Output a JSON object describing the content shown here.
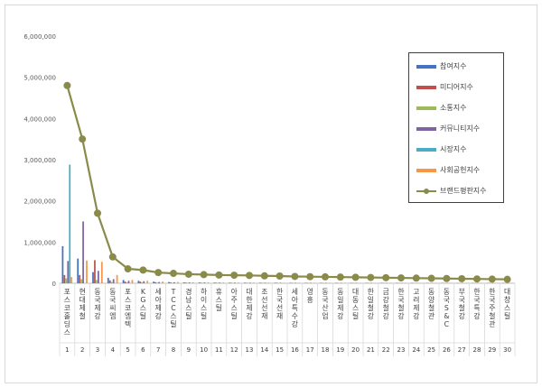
{
  "chart_data": {
    "type": "bar",
    "ylim": [
      0,
      6000000
    ],
    "y_ticks": [
      "0",
      "1,000,000",
      "2,000,000",
      "3,000,000",
      "4,000,000",
      "5,000,000",
      "6,000,000"
    ],
    "y_tick_values": [
      0,
      1000000,
      2000000,
      3000000,
      4000000,
      5000000,
      6000000
    ],
    "categories": [
      "포스코홀딩스",
      "현대제철",
      "동국제강",
      "동국씨엠",
      "포스코엠텍",
      "KG스틸",
      "세아제강",
      "TCC스틸",
      "경남스틸",
      "하이스틸",
      "휴스틸",
      "아주스틸",
      "대한제강",
      "조선선재",
      "한국선재",
      "세아특수강",
      "영흥",
      "동국산업",
      "동일제강",
      "대동스틸",
      "한일철강",
      "금강철강",
      "한국철강",
      "고려제강",
      "동양철관",
      "동국S&C",
      "부국철강",
      "한국특강",
      "한국주철관",
      "대창스틸"
    ],
    "ranks": [
      "1",
      "2",
      "3",
      "4",
      "5",
      "6",
      "7",
      "8",
      "9",
      "10",
      "11",
      "12",
      "13",
      "14",
      "15",
      "16",
      "17",
      "18",
      "19",
      "20",
      "21",
      "22",
      "23",
      "24",
      "25",
      "26",
      "27",
      "28",
      "29",
      "30"
    ],
    "series": [
      {
        "name": "참여지수",
        "color": "#4472c4",
        "values": [
          900000,
          600000,
          270000,
          130000,
          80000,
          60000,
          40000,
          30000,
          20000,
          18000,
          16000,
          15000,
          14000,
          13000,
          12000,
          11000,
          10000,
          10000,
          9000,
          9000,
          8000,
          8000,
          7000,
          7000,
          6000,
          6000,
          5000,
          5000,
          5000,
          4000
        ]
      },
      {
        "name": "미디어지수",
        "color": "#c0504d",
        "values": [
          200000,
          200000,
          560000,
          70000,
          40000,
          40000,
          25000,
          20000,
          15000,
          13000,
          12000,
          11000,
          10000,
          10000,
          9000,
          9000,
          8000,
          8000,
          7000,
          7000,
          6000,
          6000,
          6000,
          5000,
          5000,
          5000,
          4000,
          4000,
          4000,
          4000
        ]
      },
      {
        "name": "소통지수",
        "color": "#9bbb59",
        "values": [
          120000,
          100000,
          80000,
          30000,
          20000,
          20000,
          15000,
          10000,
          10000,
          9000,
          8000,
          8000,
          7000,
          7000,
          6000,
          6000,
          5000,
          5000,
          5000,
          5000,
          4000,
          4000,
          4000,
          4000,
          3000,
          3000,
          3000,
          3000,
          3000,
          3000
        ]
      },
      {
        "name": "커뮤니티지수",
        "color": "#8064a2",
        "values": [
          540000,
          1500000,
          300000,
          100000,
          60000,
          50000,
          30000,
          25000,
          20000,
          18000,
          16000,
          15000,
          14000,
          13000,
          12000,
          11000,
          10000,
          10000,
          9000,
          9000,
          8000,
          8000,
          7000,
          7000,
          6000,
          6000,
          5000,
          5000,
          5000,
          4000
        ]
      },
      {
        "name": "시장지수",
        "color": "#4bacc6",
        "values": [
          2880000,
          0,
          0,
          0,
          0,
          0,
          0,
          0,
          0,
          0,
          0,
          0,
          0,
          0,
          0,
          0,
          0,
          0,
          0,
          0,
          0,
          0,
          0,
          0,
          0,
          0,
          0,
          0,
          0,
          0
        ]
      },
      {
        "name": "사회공헌지수",
        "color": "#f79646",
        "values": [
          150000,
          550000,
          520000,
          200000,
          80000,
          60000,
          40000,
          30000,
          25000,
          20000,
          18000,
          16000,
          15000,
          14000,
          13000,
          12000,
          11000,
          10000,
          10000,
          9000,
          9000,
          8000,
          8000,
          7000,
          7000,
          6000,
          6000,
          5000,
          5000,
          5000
        ]
      },
      {
        "name": "브랜드평판지수",
        "color": "#8a8a4a",
        "kind": "line",
        "values": [
          4800000,
          3500000,
          1700000,
          640000,
          350000,
          320000,
          260000,
          240000,
          220000,
          210000,
          200000,
          195000,
          190000,
          180000,
          175000,
          165000,
          160000,
          155000,
          150000,
          145000,
          140000,
          135000,
          130000,
          125000,
          120000,
          115000,
          110000,
          105000,
          100000,
          95000
        ]
      }
    ],
    "legend_position": "right"
  }
}
